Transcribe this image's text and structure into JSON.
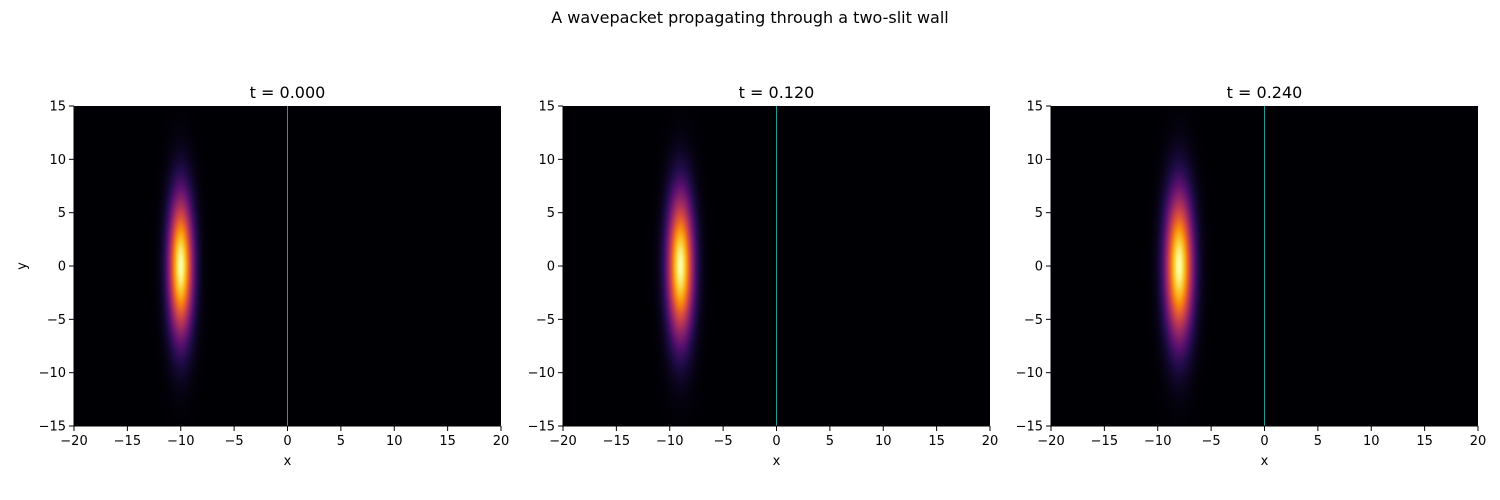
{
  "figure": {
    "title": "A wavepacket propagating through a two-slit wall"
  },
  "chart_data": [
    {
      "type": "heatmap",
      "title": "t = 0.000",
      "t": 0.0,
      "xlabel": "x",
      "ylabel": "y",
      "xlim": [
        -20,
        20
      ],
      "ylim": [
        -15,
        15
      ],
      "x_ticks": [
        -20,
        -15,
        -10,
        -5,
        0,
        5,
        10,
        15,
        20
      ],
      "y_ticks": [
        -15,
        -10,
        -5,
        0,
        5,
        10,
        15
      ],
      "x_tick_labels": [
        "−20",
        "−15",
        "−10",
        "−5",
        "0",
        "5",
        "10",
        "15",
        "20"
      ],
      "y_tick_labels": [
        "−15",
        "−10",
        "−5",
        "0",
        "5",
        "10",
        "15"
      ],
      "colormap": "inferno",
      "packet_center": [
        -10,
        0
      ],
      "packet_sigma": [
        0.8,
        4.5
      ],
      "wall_x": 0,
      "wall_color": "#1f9e9e",
      "grid": false
    },
    {
      "type": "heatmap",
      "title": "t = 0.120",
      "t": 0.12,
      "xlabel": "x",
      "ylabel": "",
      "xlim": [
        -20,
        20
      ],
      "ylim": [
        -15,
        15
      ],
      "x_ticks": [
        -20,
        -15,
        -10,
        -5,
        0,
        5,
        10,
        15,
        20
      ],
      "y_ticks": [
        -15,
        -10,
        -5,
        0,
        5,
        10,
        15
      ],
      "x_tick_labels": [
        "−20",
        "−15",
        "−10",
        "−5",
        "0",
        "5",
        "10",
        "15",
        "20"
      ],
      "y_tick_labels": [
        "−15",
        "−10",
        "−5",
        "0",
        "5",
        "10",
        "15"
      ],
      "colormap": "inferno",
      "packet_center": [
        -9,
        0
      ],
      "packet_sigma": [
        0.85,
        4.6
      ],
      "wall_x": 0,
      "wall_color": "#1f9e9e",
      "grid": false
    },
    {
      "type": "heatmap",
      "title": "t = 0.240",
      "t": 0.24,
      "xlabel": "x",
      "ylabel": "",
      "xlim": [
        -20,
        20
      ],
      "ylim": [
        -15,
        15
      ],
      "x_ticks": [
        -20,
        -15,
        -10,
        -5,
        0,
        5,
        10,
        15,
        20
      ],
      "y_ticks": [
        -15,
        -10,
        -5,
        0,
        5,
        10,
        15
      ],
      "x_tick_labels": [
        "−20",
        "−15",
        "−10",
        "−5",
        "0",
        "5",
        "10",
        "15",
        "20"
      ],
      "y_tick_labels": [
        "−15",
        "−10",
        "−5",
        "0",
        "5",
        "10",
        "15"
      ],
      "colormap": "inferno",
      "packet_center": [
        -8,
        0
      ],
      "packet_sigma": [
        0.9,
        4.7
      ],
      "wall_x": 0,
      "wall_color": "#1f9e9e",
      "grid": false
    }
  ]
}
